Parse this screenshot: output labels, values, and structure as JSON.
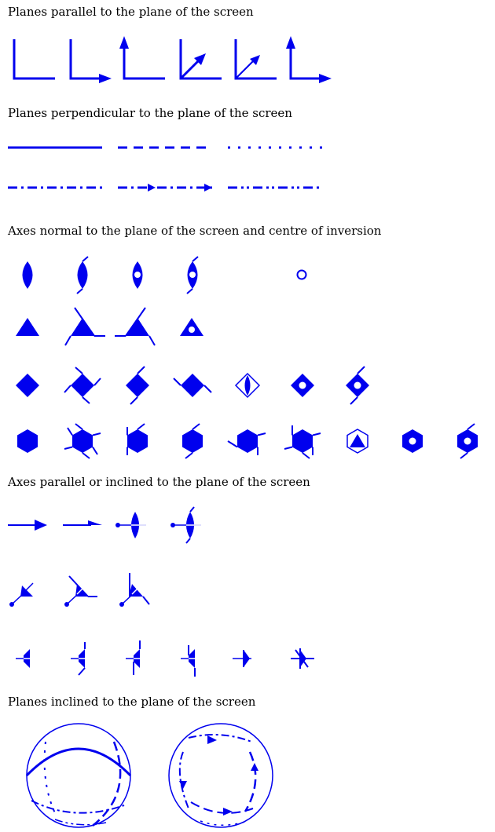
{
  "headings": {
    "parallel_planes": "Planes parallel to the plane of the screen",
    "perpendicular_planes": "Planes perpendicular to the plane of the screen",
    "normal_axes": "Axes normal to the plane of the screen and centre of inversion",
    "inclined_axes": "Axes parallel or inclined to the plane of the screen",
    "inclined_planes": "Planes inclined to the plane of the screen"
  },
  "colors": {
    "symbol": "#0000ee",
    "background": "#ffffff",
    "text": "#000000"
  }
}
